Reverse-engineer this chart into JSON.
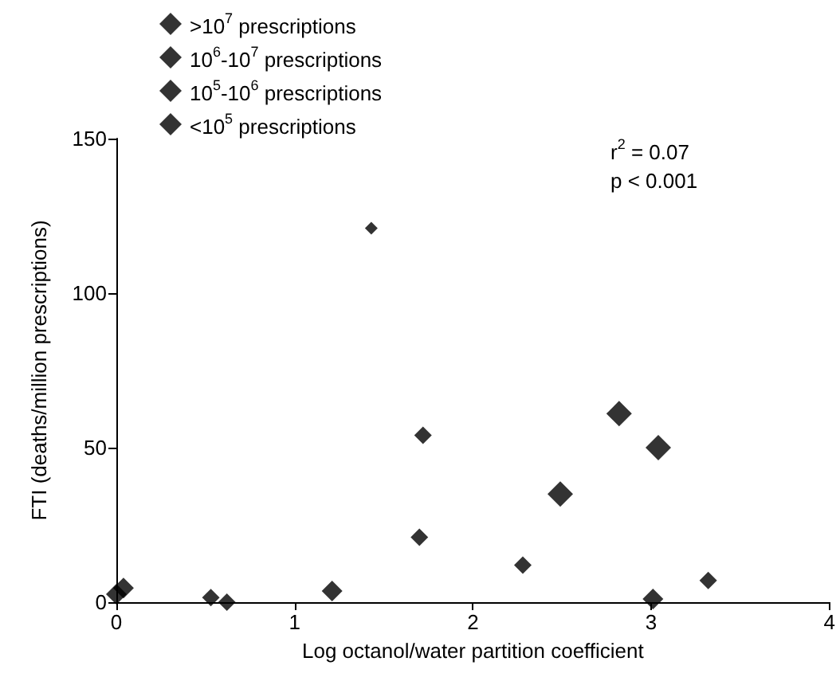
{
  "chart_data": {
    "type": "scatter",
    "xlabel": "Log octanol/water partition coefficient",
    "ylabel": "FTI (deaths/million prescriptions)",
    "xlim": [
      0,
      4
    ],
    "xticks": [
      0,
      1,
      2,
      3,
      4
    ],
    "ylim": [
      0,
      150
    ],
    "yticks": [
      0,
      50,
      100,
      150
    ],
    "grid": false,
    "legend": "top left",
    "marker": "diamond",
    "annotations": [
      "r$^{2}$ = 0.07",
      "p < 0.001"
    ],
    "series": [
      {
        "name": ">10$^{7}$ prescriptions",
        "color": "#000000",
        "x": [
          2.49,
          2.82,
          3.04
        ],
        "values": [
          35,
          61,
          50
        ]
      },
      {
        "name": "10$^{6}$-10$^{7}$ prescriptions",
        "color": "#000000",
        "x": [
          0,
          0.04,
          1.21,
          3.01
        ],
        "values": [
          2.6,
          4.6,
          3.6,
          1
        ]
      },
      {
        "name": "10$^{5}$-10$^{6}$ prescriptions",
        "color": "#000000",
        "x": [
          0.53,
          0.62,
          1.72,
          1.7,
          2.28,
          3.32
        ],
        "values": [
          1.5,
          0,
          54,
          21,
          12,
          7
        ]
      },
      {
        "name": "<10$^{5}$ prescriptions",
        "color": "#000000",
        "x": [
          1.43
        ],
        "values": [
          121
        ]
      }
    ]
  }
}
